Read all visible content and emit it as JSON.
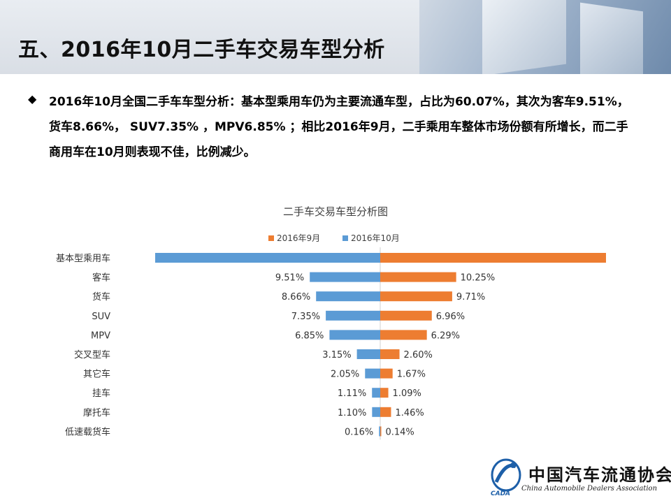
{
  "slide": {
    "title": "五、2016年10月二手车交易车型分析",
    "bullet": "2016年10月全国二手车车型分析：基本型乘用车仍为主要流通车型，占比为60.07%，其次为客车9.51%，货车8.66%， SUV7.35% ，MPV6.85% ；相比2016年9月，二手乘用车整体市场份额有所增长，而二手商用车在10月则表现不佳，比例减少。"
  },
  "logo": {
    "name": "中国汽车流通协会",
    "abbr": "CADA",
    "english": "China Automobile Dealers Association"
  },
  "colors": {
    "sep2016": "#ED7D31",
    "oct2016": "#5B9BD5",
    "title_text": "#404040"
  },
  "chart_data": {
    "type": "bar",
    "title": "二手车交易车型分析图",
    "orientation": "horizontal-butterfly",
    "legend_position": "top",
    "categories": [
      "基本型乘用车",
      "客车",
      "货车",
      "SUV",
      "MPV",
      "交叉型车",
      "其它车",
      "挂车",
      "摩托车",
      "低速载货车"
    ],
    "series": [
      {
        "name": "2016年9月",
        "side": "right",
        "values": [
          null,
          10.25,
          9.71,
          6.96,
          6.29,
          2.6,
          1.67,
          1.09,
          1.46,
          0.14
        ],
        "labels": [
          "",
          "10.25%",
          "9.71%",
          "6.96%",
          "6.29%",
          "2.60%",
          "1.67%",
          "1.09%",
          "1.46%",
          "0.14%"
        ]
      },
      {
        "name": "2016年10月",
        "side": "left",
        "values": [
          60.07,
          9.51,
          8.66,
          7.35,
          6.85,
          3.15,
          2.05,
          1.11,
          1.1,
          0.16
        ],
        "labels": [
          "",
          "9.51%",
          "8.66%",
          "7.35%",
          "6.85%",
          "3.15%",
          "2.05%",
          "1.11%",
          "1.10%",
          "0.16%"
        ]
      }
    ],
    "grid": false
  }
}
